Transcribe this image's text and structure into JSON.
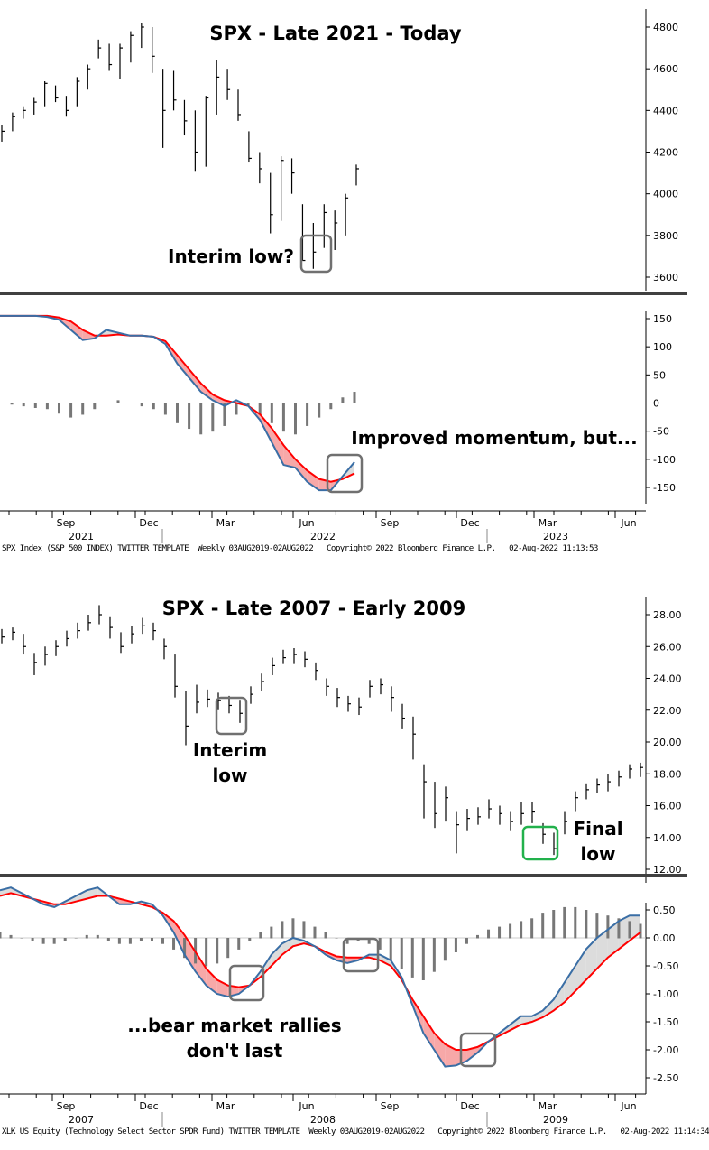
{
  "colors": {
    "bar": "#000000",
    "blue": "#3a6ea5",
    "red": "#ff0000",
    "pink_fill": "#f7a8a8",
    "grey_fill": "#dcdcdc",
    "box": "#707070",
    "green_box": "#22b14c",
    "separator": "#404040"
  },
  "chart_data": [
    {
      "type": "bar",
      "chart": "ohlc",
      "title": "SPX - Late 2021 - Today",
      "ylim": [
        3550,
        4850
      ],
      "yticks": [
        3600,
        3800,
        4000,
        4200,
        4400,
        4600,
        4800
      ],
      "bars_low_high_close": [
        [
          4250,
          4330,
          4300
        ],
        [
          4300,
          4390,
          4370
        ],
        [
          4360,
          4420,
          4400
        ],
        [
          4380,
          4460,
          4440
        ],
        [
          4420,
          4540,
          4530
        ],
        [
          4440,
          4520,
          4460
        ],
        [
          4370,
          4470,
          4400
        ],
        [
          4420,
          4560,
          4540
        ],
        [
          4500,
          4620,
          4600
        ],
        [
          4650,
          4740,
          4700
        ],
        [
          4590,
          4720,
          4620
        ],
        [
          4550,
          4720,
          4700
        ],
        [
          4630,
          4780,
          4760
        ],
        [
          4700,
          4820,
          4800
        ],
        [
          4580,
          4800,
          4660
        ],
        [
          4220,
          4600,
          4400
        ],
        [
          4400,
          4590,
          4450
        ],
        [
          4280,
          4450,
          4350
        ],
        [
          4110,
          4400,
          4200
        ],
        [
          4130,
          4470,
          4460
        ],
        [
          4380,
          4640,
          4560
        ],
        [
          4450,
          4600,
          4500
        ],
        [
          4350,
          4500,
          4380
        ],
        [
          4150,
          4300,
          4170
        ],
        [
          4050,
          4200,
          4120
        ],
        [
          3810,
          4100,
          3900
        ],
        [
          3870,
          4180,
          4160
        ],
        [
          4000,
          4170,
          4100
        ],
        [
          3680,
          3950,
          3680
        ],
        [
          3640,
          3860,
          3720
        ],
        [
          3740,
          3950,
          3910
        ],
        [
          3730,
          3920,
          3860
        ],
        [
          3800,
          4000,
          3980
        ],
        [
          4040,
          4140,
          4120
        ]
      ],
      "annotations": [
        "Interim low?"
      ]
    },
    {
      "type": "line",
      "chart": "momentum",
      "ylim": [
        -175,
        175
      ],
      "yticks": [
        -150,
        -100,
        -50,
        0,
        50,
        100,
        150
      ],
      "series": [
        {
          "color": "blue",
          "values": [
            155,
            155,
            155,
            155,
            153,
            148,
            130,
            112,
            115,
            130,
            125,
            120,
            120,
            118,
            105,
            70,
            45,
            20,
            5,
            -5,
            5,
            -5,
            -30,
            -70,
            -110,
            -115,
            -140,
            -155,
            -155,
            -130,
            -105
          ]
        },
        {
          "color": "red",
          "values": [
            155,
            155,
            155,
            155,
            155,
            152,
            145,
            130,
            120,
            120,
            122,
            120,
            120,
            118,
            110,
            85,
            60,
            35,
            15,
            5,
            0,
            -5,
            -20,
            -45,
            -75,
            -100,
            -120,
            -135,
            -140,
            -135,
            -125
          ]
        }
      ],
      "histogram": [
        0,
        -2,
        -5,
        -8,
        -10,
        -18,
        -25,
        -20,
        -10,
        0,
        5,
        0,
        -5,
        -10,
        -20,
        -35,
        -45,
        -55,
        -50,
        -40,
        -20,
        -5,
        -20,
        -35,
        -50,
        -55,
        -40,
        -25,
        -10,
        10,
        20
      ],
      "annotations": [
        "Improved momentum, but..."
      ],
      "xticks": [
        "Sep",
        "Dec",
        "Mar",
        "Jun",
        "Sep",
        "Dec",
        "Mar",
        "Jun"
      ],
      "years": [
        "2021",
        "2022",
        "2023"
      ],
      "footer": "SPX Index (S&P 500 INDEX) TWITTER TEMPLATE  Weekly 03AUG2019-02AUG2022   Copyright© 2022 Bloomberg Finance L.P.   02-Aug-2022 11:13:53"
    },
    {
      "type": "bar",
      "chart": "ohlc",
      "title": "SPX - Late 2007 - Early 2009",
      "ylim": [
        11.5,
        29.5
      ],
      "yticks": [
        12,
        14,
        16,
        18,
        20,
        22,
        24,
        26,
        28
      ],
      "bars_low_high_close": [
        [
          26.2,
          27.1,
          26.6
        ],
        [
          26.4,
          27.2,
          26.9
        ],
        [
          25.5,
          26.8,
          26.0
        ],
        [
          24.2,
          25.6,
          25.0
        ],
        [
          24.8,
          26.0,
          25.5
        ],
        [
          25.4,
          26.4,
          26.0
        ],
        [
          26.0,
          27.0,
          26.5
        ],
        [
          26.5,
          27.5,
          27.0
        ],
        [
          27.0,
          28.0,
          27.5
        ],
        [
          27.4,
          28.6,
          28.0
        ],
        [
          26.5,
          27.9,
          27.2
        ],
        [
          25.6,
          26.9,
          26.0
        ],
        [
          26.2,
          27.3,
          26.8
        ],
        [
          26.8,
          27.8,
          27.3
        ],
        [
          26.4,
          27.5,
          27.0
        ],
        [
          25.2,
          26.5,
          26.0
        ],
        [
          22.8,
          25.5,
          23.5
        ],
        [
          19.8,
          23.2,
          21.0
        ],
        [
          21.8,
          23.6,
          22.5
        ],
        [
          22.2,
          23.3,
          22.7
        ],
        [
          22.0,
          23.1,
          22.6
        ],
        [
          21.8,
          22.9,
          22.3
        ],
        [
          21.2,
          22.6,
          21.8
        ],
        [
          22.4,
          23.5,
          23.0
        ],
        [
          23.2,
          24.3,
          23.8
        ],
        [
          24.2,
          25.3,
          24.8
        ],
        [
          24.9,
          25.8,
          25.3
        ],
        [
          24.9,
          25.9,
          25.5
        ],
        [
          24.7,
          25.7,
          25.2
        ],
        [
          23.9,
          25.0,
          24.5
        ],
        [
          22.9,
          24.0,
          23.5
        ],
        [
          22.2,
          23.4,
          22.8
        ],
        [
          21.9,
          22.9,
          22.4
        ],
        [
          21.7,
          22.8,
          22.2
        ],
        [
          22.8,
          23.9,
          23.5
        ],
        [
          23.0,
          24.0,
          23.6
        ],
        [
          21.9,
          23.5,
          22.8
        ],
        [
          20.8,
          22.4,
          21.5
        ],
        [
          18.9,
          21.6,
          20.5
        ],
        [
          15.2,
          18.6,
          17.5
        ],
        [
          14.6,
          17.5,
          15.5
        ],
        [
          15.0,
          17.2,
          16.5
        ],
        [
          13.0,
          15.6,
          14.8
        ],
        [
          14.4,
          15.8,
          15.2
        ],
        [
          14.8,
          15.9,
          15.3
        ],
        [
          15.2,
          16.4,
          15.8
        ],
        [
          14.8,
          16.0,
          15.5
        ],
        [
          14.4,
          15.6,
          15.0
        ],
        [
          14.8,
          16.2,
          15.5
        ],
        [
          14.9,
          16.2,
          15.6
        ],
        [
          13.6,
          14.9,
          14.2
        ],
        [
          12.9,
          14.3,
          13.3
        ],
        [
          14.2,
          15.6,
          15.0
        ],
        [
          15.6,
          16.9,
          16.5
        ],
        [
          16.4,
          17.4,
          17.0
        ],
        [
          16.8,
          17.7,
          17.3
        ],
        [
          16.9,
          18.0,
          17.5
        ],
        [
          17.2,
          18.2,
          17.8
        ],
        [
          17.7,
          18.6,
          18.3
        ],
        [
          17.8,
          18.7,
          18.4
        ]
      ],
      "annotations": [
        "Interim",
        "low",
        "Final",
        "low"
      ]
    },
    {
      "type": "line",
      "chart": "momentum",
      "ylim": [
        -2.7,
        0.8
      ],
      "yticks": [
        0.5,
        0,
        -0.5,
        -1,
        -1.5,
        -2,
        -2.5
      ],
      "ytick_labels": [
        "0.50",
        "0.00",
        "-0.50",
        "-1.00",
        "-1.50",
        "-2.00",
        "-2.50"
      ],
      "series": [
        {
          "color": "blue",
          "values": [
            0.85,
            0.9,
            0.8,
            0.7,
            0.6,
            0.55,
            0.65,
            0.75,
            0.85,
            0.9,
            0.75,
            0.6,
            0.6,
            0.65,
            0.6,
            0.4,
            0.1,
            -0.3,
            -0.6,
            -0.85,
            -1.0,
            -1.05,
            -1.0,
            -0.85,
            -0.6,
            -0.3,
            -0.1,
            0.0,
            -0.05,
            -0.15,
            -0.3,
            -0.4,
            -0.45,
            -0.4,
            -0.3,
            -0.3,
            -0.4,
            -0.7,
            -1.2,
            -1.7,
            -2.0,
            -2.3,
            -2.28,
            -2.2,
            -2.05,
            -1.85,
            -1.7,
            -1.55,
            -1.4,
            -1.4,
            -1.3,
            -1.1,
            -0.8,
            -0.5,
            -0.2,
            0.0,
            0.15,
            0.3,
            0.4,
            0.4
          ]
        },
        {
          "color": "red",
          "values": [
            0.75,
            0.8,
            0.75,
            0.7,
            0.65,
            0.6,
            0.6,
            0.65,
            0.7,
            0.75,
            0.75,
            0.7,
            0.65,
            0.6,
            0.55,
            0.45,
            0.3,
            0.05,
            -0.25,
            -0.55,
            -0.75,
            -0.85,
            -0.88,
            -0.85,
            -0.7,
            -0.5,
            -0.3,
            -0.15,
            -0.1,
            -0.15,
            -0.25,
            -0.33,
            -0.35,
            -0.35,
            -0.35,
            -0.4,
            -0.5,
            -0.75,
            -1.1,
            -1.4,
            -1.7,
            -1.9,
            -2.0,
            -2.0,
            -1.95,
            -1.85,
            -1.75,
            -1.65,
            -1.55,
            -1.5,
            -1.42,
            -1.3,
            -1.15,
            -0.95,
            -0.75,
            -0.55,
            -0.35,
            -0.2,
            -0.05,
            0.1
          ]
        }
      ],
      "histogram": [
        0.1,
        0.05,
        0,
        -0.05,
        -0.1,
        -0.1,
        -0.05,
        0,
        0.05,
        0.05,
        -0.05,
        -0.1,
        -0.1,
        -0.05,
        -0.05,
        -0.1,
        -0.2,
        -0.35,
        -0.45,
        -0.5,
        -0.45,
        -0.35,
        -0.2,
        -0.05,
        0.1,
        0.2,
        0.3,
        0.35,
        0.3,
        0.2,
        0.1,
        0.0,
        -0.1,
        -0.05,
        -0.1,
        -0.2,
        -0.4,
        -0.55,
        -0.7,
        -0.75,
        -0.6,
        -0.4,
        -0.25,
        -0.1,
        0.05,
        0.15,
        0.2,
        0.25,
        0.3,
        0.35,
        0.45,
        0.5,
        0.55,
        0.55,
        0.5,
        0.45,
        0.4,
        0.35,
        0.3,
        0.25
      ],
      "annotations": [
        "...bear market rallies",
        "don't last"
      ],
      "xticks": [
        "Sep",
        "Dec",
        "Mar",
        "Jun",
        "Sep",
        "Dec",
        "Mar",
        "Jun"
      ],
      "years": [
        "2007",
        "2008",
        "2009"
      ],
      "footer": "XLK US Equity (Technology Select Sector SPDR Fund) TWITTER TEMPLATE  Weekly 03AUG2019-02AUG2022   Copyright© 2022 Bloomberg Finance L.P.   02-Aug-2022 11:14:34"
    }
  ]
}
